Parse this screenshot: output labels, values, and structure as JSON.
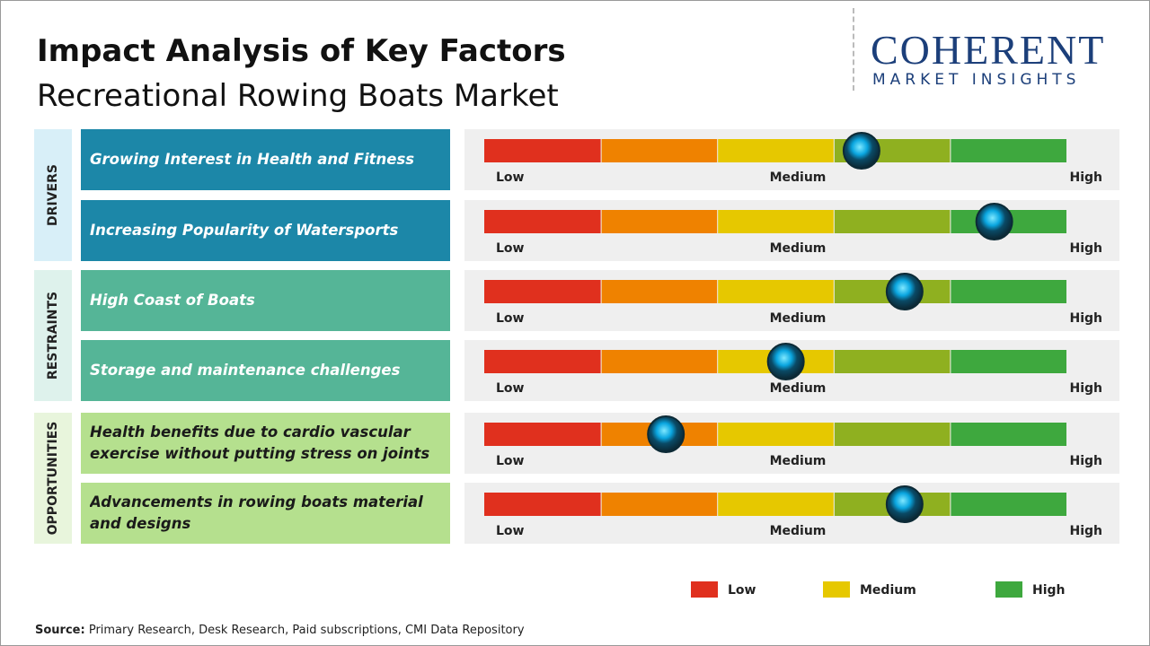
{
  "header": {
    "title": "Impact Analysis of Key Factors",
    "subtitle": "Recreational Rowing Boats Market"
  },
  "logo": {
    "name": "COHERENT",
    "tagline": "MARKET INSIGHTS"
  },
  "scale_labels": [
    "Low",
    "Medium",
    "High"
  ],
  "xlim": [
    0,
    5
  ],
  "segment_colors": [
    "#e0301e",
    "#ef8200",
    "#e6c800",
    "#8fb020",
    "#3ea83e"
  ],
  "groups": [
    {
      "name": "DRIVERS",
      "color": "#d8eff8",
      "row_color": "#1c87a8",
      "text_color": "#ffffff",
      "rows": [
        {
          "label": "Growing Interest in Health and Fitness",
          "position": 3.24
        },
        {
          "label": "Increasing Popularity of Watersports",
          "position": 4.38
        }
      ]
    },
    {
      "name": "RESTRAINTS",
      "color": "#def2ec",
      "row_color": "#55b597",
      "text_color": "#ffffff",
      "rows": [
        {
          "label": "High Coast of Boats",
          "position": 3.61
        },
        {
          "label": "Storage and maintenance challenges",
          "position": 2.59
        }
      ]
    },
    {
      "name": "OPPORTUNITIES",
      "color": "#e8f5dc",
      "row_color": "#b5e08e",
      "text_color": "#1a1a1a",
      "rows": [
        {
          "label": "Health benefits due to cardio vascular exercise without putting stress on joints",
          "position": 1.56
        },
        {
          "label": "Advancements in rowing boats material and designs",
          "position": 3.61
        }
      ]
    }
  ],
  "legend": [
    {
      "name": "Low",
      "color": "#e0301e"
    },
    {
      "name": "Medium",
      "color": "#e6c800"
    },
    {
      "name": "High",
      "color": "#3ea83e"
    }
  ],
  "source": {
    "label": "Source:",
    "text": "Primary Research, Desk Research, Paid subscriptions, CMI Data Repository"
  }
}
